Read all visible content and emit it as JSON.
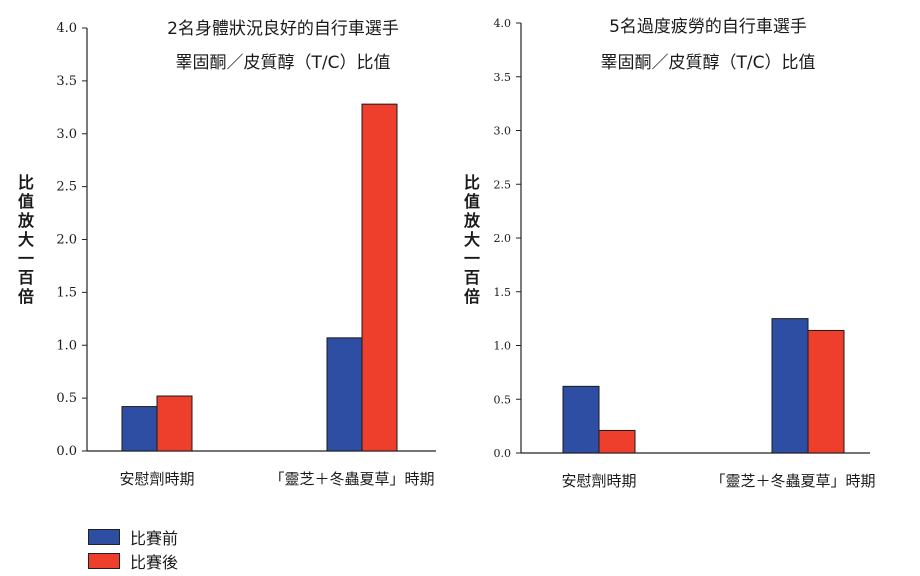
{
  "colors": {
    "before": "#2e4ea3",
    "after": "#ee3e2c"
  },
  "legend": [
    {
      "label": "比賽前",
      "color": "#2e4ea3"
    },
    {
      "label": "比賽後",
      "color": "#ee3e2c"
    }
  ],
  "chart_data": [
    {
      "type": "bar",
      "title": "2名身體狀況良好的自行車選手",
      "subtitle": "睪固酮／皮質醇（T/C）比值",
      "ylabel": "比值放大一百倍",
      "xlabel": "",
      "categories": [
        "安慰劑時期",
        "「靈芝＋冬蟲夏草」時期"
      ],
      "series": [
        {
          "name": "比賽前",
          "values": [
            0.42,
            1.07
          ]
        },
        {
          "name": "比賽後",
          "values": [
            0.52,
            3.28
          ]
        }
      ],
      "ylim": [
        0,
        4.0
      ],
      "yticks": [
        "0.0",
        "0.5",
        "1.0",
        "1.5",
        "2.0",
        "2.5",
        "3.0",
        "3.5",
        "4.0"
      ],
      "grid": false,
      "legend_position": "bottom-left"
    },
    {
      "type": "bar",
      "title": "5名過度疲勞的自行車選手",
      "subtitle": "睪固酮／皮質醇（T/C）比值",
      "ylabel": "比值放大一百倍",
      "xlabel": "",
      "categories": [
        "安慰劑時期",
        "「靈芝＋冬蟲夏草」時期"
      ],
      "series": [
        {
          "name": "比賽前",
          "values": [
            0.62,
            1.25
          ]
        },
        {
          "name": "比賽後",
          "values": [
            0.21,
            1.14
          ]
        }
      ],
      "ylim": [
        0,
        4.0
      ],
      "yticks": [
        "0.0",
        "0.5",
        "1.0",
        "1.5",
        "2.0",
        "2.5",
        "3.0",
        "3.5",
        "4.0"
      ],
      "grid": false,
      "legend_position": "bottom-left"
    }
  ]
}
